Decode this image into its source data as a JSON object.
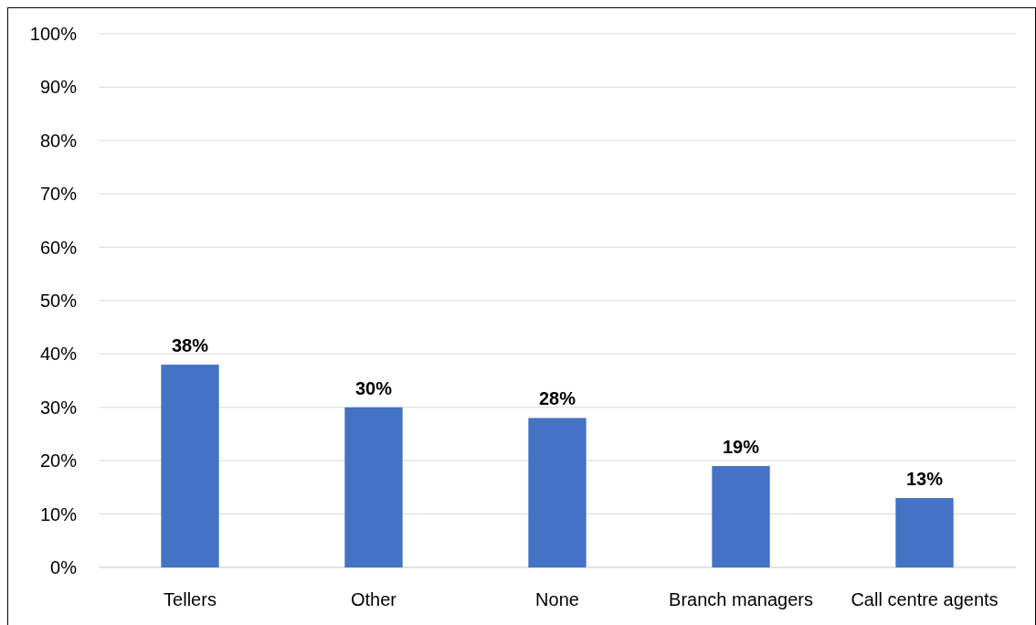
{
  "chart_data": {
    "type": "bar",
    "categories": [
      "Tellers",
      "Other",
      "None",
      "Branch managers",
      "Call centre agents"
    ],
    "values": [
      38,
      30,
      28,
      19,
      13
    ],
    "color": "#4472c4",
    "ylim": [
      0,
      100
    ],
    "yticks": [
      {
        "value": 0,
        "label": "0%"
      },
      {
        "value": 10,
        "label": "10%"
      },
      {
        "value": 20,
        "label": "20%"
      },
      {
        "value": 30,
        "label": "30%"
      },
      {
        "value": 40,
        "label": "40%"
      },
      {
        "value": 50,
        "label": "50%"
      },
      {
        "value": 60,
        "label": "60%"
      },
      {
        "value": 70,
        "label": "70%"
      },
      {
        "value": 80,
        "label": "80%"
      },
      {
        "value": 90,
        "label": "90%"
      },
      {
        "value": 100,
        "label": "100%"
      }
    ],
    "grid": "y",
    "data_labels": true,
    "value_labels": [
      "38%",
      "30%",
      "28%",
      "19%",
      "13%"
    ]
  }
}
